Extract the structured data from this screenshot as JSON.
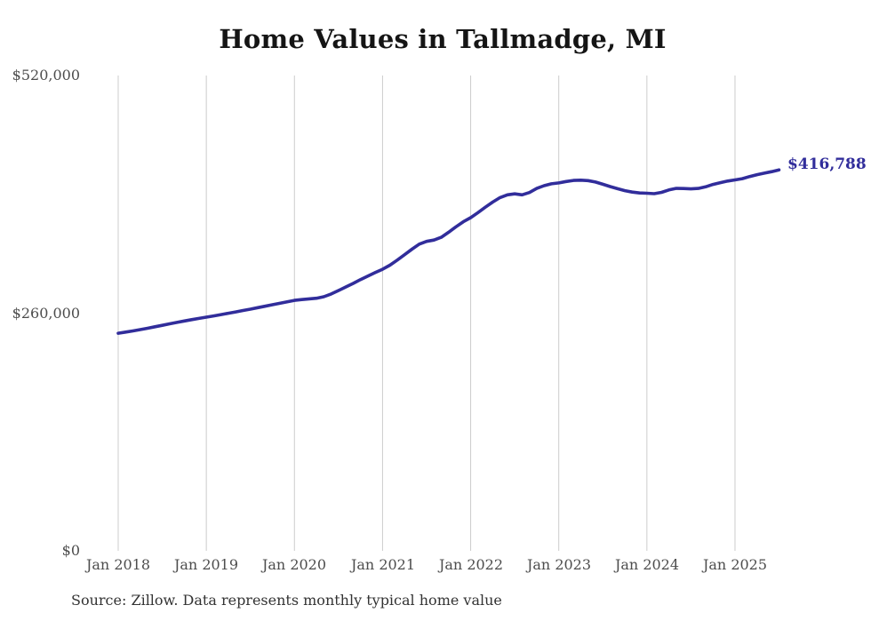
{
  "chart_data": {
    "type": "line",
    "title": "Home Values in Tallmadge, MI",
    "xlabel": "",
    "ylabel": "",
    "ylim": [
      0,
      520000
    ],
    "grid": "vertical-only",
    "legend": "none",
    "x_tick_labels": [
      "Jan 2018",
      "Jan 2019",
      "Jan 2020",
      "Jan 2021",
      "Jan 2022",
      "Jan 2023",
      "Jan 2024",
      "Jan 2025"
    ],
    "y_ticks": [
      {
        "label": "$520,000",
        "value": 520000
      },
      {
        "label": "$260,000",
        "value": 260000
      },
      {
        "label": "$0",
        "value": 0
      }
    ],
    "series_name": "Monthly typical home value",
    "x": [
      "2018-01",
      "2018-02",
      "2018-03",
      "2018-04",
      "2018-05",
      "2018-06",
      "2018-07",
      "2018-08",
      "2018-09",
      "2018-10",
      "2018-11",
      "2018-12",
      "2019-01",
      "2019-02",
      "2019-03",
      "2019-04",
      "2019-05",
      "2019-06",
      "2019-07",
      "2019-08",
      "2019-09",
      "2019-10",
      "2019-11",
      "2019-12",
      "2020-01",
      "2020-02",
      "2020-03",
      "2020-04",
      "2020-05",
      "2020-06",
      "2020-07",
      "2020-08",
      "2020-09",
      "2020-10",
      "2020-11",
      "2020-12",
      "2021-01",
      "2021-02",
      "2021-03",
      "2021-04",
      "2021-05",
      "2021-06",
      "2021-07",
      "2021-08",
      "2021-09",
      "2021-10",
      "2021-11",
      "2021-12",
      "2022-01",
      "2022-02",
      "2022-03",
      "2022-04",
      "2022-05",
      "2022-06",
      "2022-07",
      "2022-08",
      "2022-09",
      "2022-10",
      "2022-11",
      "2022-12",
      "2023-01",
      "2023-02",
      "2023-03",
      "2023-04",
      "2023-05",
      "2023-06",
      "2023-07",
      "2023-08",
      "2023-09",
      "2023-10",
      "2023-11",
      "2023-12",
      "2024-01",
      "2024-02",
      "2024-03",
      "2024-04",
      "2024-05",
      "2024-06",
      "2024-07",
      "2024-08",
      "2024-09",
      "2024-10",
      "2024-11",
      "2024-12",
      "2025-01",
      "2025-02",
      "2025-03",
      "2025-04",
      "2025-05",
      "2025-06",
      "2025-07"
    ],
    "values": [
      238000,
      239300,
      240600,
      242000,
      243500,
      245100,
      246700,
      248300,
      249900,
      251400,
      252900,
      254300,
      255600,
      257000,
      258400,
      259900,
      261400,
      262900,
      264400,
      266000,
      267600,
      269200,
      270800,
      272400,
      274000,
      274900,
      275600,
      276300,
      278000,
      281000,
      284800,
      288700,
      292600,
      296700,
      300600,
      304400,
      308000,
      312500,
      318000,
      324000,
      330000,
      335500,
      338500,
      340000,
      343000,
      348500,
      354500,
      360000,
      364500,
      370000,
      376000,
      381500,
      386500,
      389500,
      390500,
      389500,
      392000,
      396500,
      399500,
      401500,
      402500,
      404000,
      405200,
      405500,
      405000,
      403500,
      401000,
      398500,
      396200,
      394000,
      392500,
      391500,
      391200,
      390700,
      392200,
      394800,
      396600,
      396400,
      396000,
      396500,
      398200,
      400800,
      402800,
      404500,
      405800,
      407200,
      409500,
      411500,
      413200,
      414800,
      416788
    ],
    "end_label": "$416,788",
    "colors": {
      "line": "#312d9b",
      "grid": "#cccccc",
      "axis_text": "#4d4d4d",
      "title": "#151515",
      "source": "#333333"
    }
  },
  "footer": {
    "source": "Source: Zillow. Data represents monthly typical home value"
  }
}
